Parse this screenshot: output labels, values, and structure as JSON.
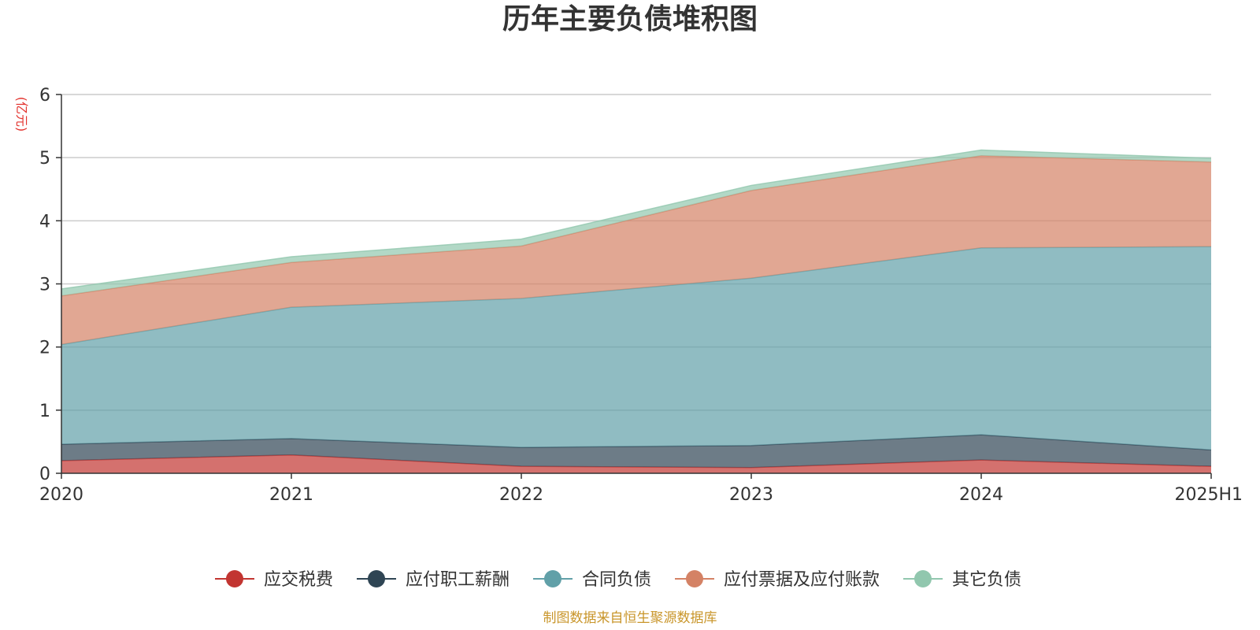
{
  "chart_data": {
    "type": "area",
    "stacked": true,
    "title": "历年主要负债堆积图",
    "unit_label": "(亿元)",
    "categories": [
      "2020",
      "2021",
      "2022",
      "2023",
      "2024",
      "2025H1"
    ],
    "ylim": [
      0,
      6
    ],
    "yticks": [
      "0",
      "1",
      "2",
      "3",
      "4",
      "5",
      "6"
    ],
    "grid": true,
    "legend_position": "bottom",
    "series": [
      {
        "name": "应交税费",
        "color": "#c23531",
        "values": [
          0.2,
          0.29,
          0.11,
          0.09,
          0.21,
          0.11
        ]
      },
      {
        "name": "应付职工薪酬",
        "color": "#2f4554",
        "values": [
          0.26,
          0.26,
          0.3,
          0.35,
          0.4,
          0.26
        ]
      },
      {
        "name": "合同负债",
        "color": "#61a0a8",
        "values": [
          1.58,
          2.08,
          2.36,
          2.65,
          2.96,
          3.22
        ]
      },
      {
        "name": "应付票据及应付账款",
        "color": "#d48265",
        "values": [
          0.77,
          0.71,
          0.83,
          1.39,
          1.46,
          1.34
        ]
      },
      {
        "name": "其它负债",
        "color": "#91c7ae",
        "values": [
          0.11,
          0.09,
          0.11,
          0.08,
          0.09,
          0.06
        ]
      }
    ],
    "source": "制图数据来自恒生聚源数据库"
  }
}
